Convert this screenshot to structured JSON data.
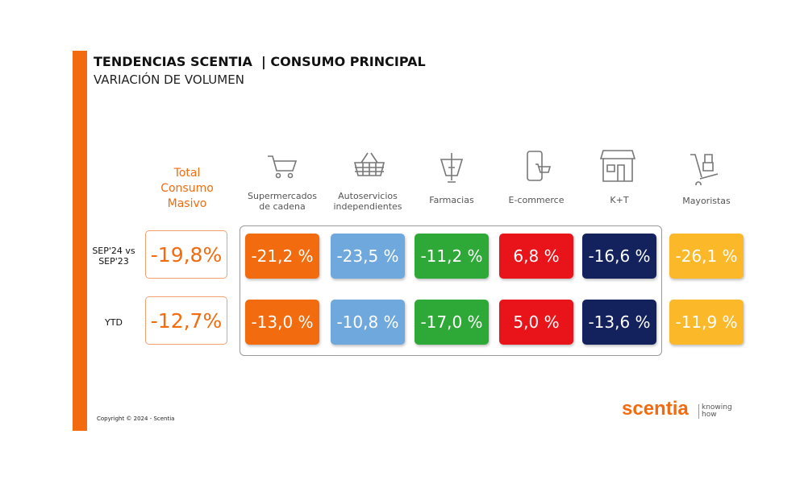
{
  "header": {
    "title": "TENDENCIAS SCENTIA  | CONSUMO PRINCIPAL",
    "subtitle": "VARIACIÓN DE VOLUMEN"
  },
  "table": {
    "total_header": "Total Consumo Masivo",
    "columns": [
      "Supermercados de cadena",
      "Autoservicios independientes",
      "Farmacias",
      "E-commerce",
      "K+T",
      "Mayoristas"
    ],
    "rows": [
      {
        "label": "SEP'24 vs SEP'23",
        "total": "-19,8%",
        "values": [
          "-21,2 %",
          "-23,5 %",
          "-11,2 %",
          "6,8 %",
          "-16,6 %",
          "-26,1 %"
        ]
      },
      {
        "label": "YTD",
        "total": "-12,7%",
        "values": [
          "-13,0 %",
          "-10,8 %",
          "-17,0 %",
          "5,0 %",
          "-13,6 %",
          "-11,9 %"
        ]
      }
    ]
  },
  "footer": {
    "copyright": "Copyright © 2024 - Scentia",
    "brand": "scentia",
    "tagline": "knowing how"
  }
}
